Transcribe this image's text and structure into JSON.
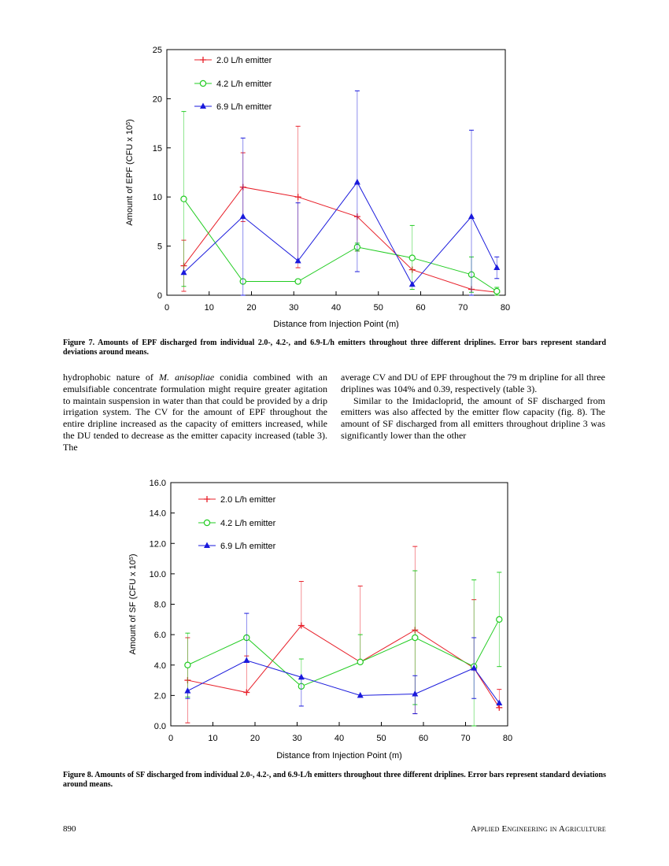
{
  "chart_data": [
    {
      "type": "line",
      "ylabel": "Amount of EPF (CFU x 10^5)",
      "ylabel_main": "Amount of EPF (CFU x 10",
      "ylabel_sup": "5",
      "ylabel_tail": ")",
      "xlabel": "Distance from Injection Point (m)",
      "xlim": [
        0,
        80
      ],
      "ylim": [
        0,
        25
      ],
      "xticks": [
        "0",
        "10",
        "20",
        "30",
        "40",
        "50",
        "60",
        "70",
        "80"
      ],
      "yticks": [
        "0",
        "5",
        "10",
        "15",
        "20",
        "25"
      ],
      "grid": false,
      "legend_position": "top-left",
      "series": [
        {
          "name": "2.0 L/h emitter",
          "color": "#e8202a",
          "marker": "plus",
          "x": [
            4,
            18,
            31,
            45,
            58,
            72,
            78
          ],
          "y": [
            3.0,
            11.0,
            10.0,
            8.0,
            2.6,
            0.6,
            0.3
          ],
          "err_hi": [
            5.6,
            14.5,
            17.2,
            8.0,
            2.6,
            0.6,
            0.3
          ],
          "err_lo": [
            0.4,
            7.5,
            2.8,
            4.5,
            2.6,
            0.6,
            0.3
          ]
        },
        {
          "name": "4.2 L/h emitter",
          "color": "#22cc22",
          "marker": "circle",
          "x": [
            4,
            18,
            31,
            45,
            58,
            72,
            78
          ],
          "y": [
            9.8,
            1.4,
            1.4,
            4.9,
            3.8,
            2.1,
            0.4
          ],
          "err_hi": [
            18.7,
            1.4,
            1.4,
            5.3,
            7.1,
            3.9,
            0.8
          ],
          "err_lo": [
            0.9,
            1.4,
            1.4,
            4.5,
            0.6,
            0.3,
            0.0
          ]
        },
        {
          "name": "6.9 L/h emitter",
          "color": "#1a1adc",
          "marker": "triangle",
          "x": [
            4,
            18,
            31,
            45,
            58,
            72,
            78
          ],
          "y": [
            2.3,
            8.0,
            3.5,
            11.5,
            1.1,
            8.0,
            2.8
          ],
          "err_hi": [
            2.3,
            16.0,
            9.4,
            20.8,
            1.1,
            16.8,
            3.9
          ],
          "err_lo": [
            2.3,
            0.0,
            3.5,
            2.4,
            1.1,
            0.0,
            1.7
          ]
        }
      ]
    },
    {
      "type": "line",
      "ylabel": "Amount of SF (CFU x 10^5)",
      "ylabel_main": "Amount of SF (CFU x 10",
      "ylabel_sup": "5",
      "ylabel_tail": ")",
      "xlabel": "Distance from Injection Point (m)",
      "xlim": [
        0,
        80
      ],
      "ylim": [
        0,
        16
      ],
      "xticks": [
        "0",
        "10",
        "20",
        "30",
        "40",
        "50",
        "60",
        "70",
        "80"
      ],
      "yticks": [
        "0.0",
        "2.0",
        "4.0",
        "6.0",
        "8.0",
        "10.0",
        "12.0",
        "14.0",
        "16.0"
      ],
      "grid": false,
      "legend_position": "top-left",
      "series": [
        {
          "name": "2.0 L/h emitter",
          "color": "#e8202a",
          "marker": "plus",
          "x": [
            4,
            18,
            31,
            45,
            58,
            72,
            78
          ],
          "y": [
            3.0,
            2.2,
            6.6,
            4.2,
            6.3,
            3.8,
            1.2
          ],
          "err_hi": [
            5.8,
            4.6,
            9.5,
            9.2,
            11.8,
            8.3,
            2.4
          ],
          "err_lo": [
            0.2,
            2.2,
            6.6,
            4.2,
            0.8,
            3.8,
            1.2
          ]
        },
        {
          "name": "4.2 L/h emitter",
          "color": "#22cc22",
          "marker": "circle",
          "x": [
            4,
            18,
            31,
            45,
            58,
            72,
            78
          ],
          "y": [
            4.0,
            5.8,
            2.6,
            4.2,
            5.8,
            3.9,
            7.0
          ],
          "err_hi": [
            6.1,
            5.8,
            4.4,
            6.0,
            10.2,
            9.6,
            10.1
          ],
          "err_lo": [
            1.9,
            5.8,
            2.6,
            4.2,
            1.4,
            0.0,
            3.9
          ]
        },
        {
          "name": "6.9 L/h emitter",
          "color": "#1a1adc",
          "marker": "triangle",
          "x": [
            4,
            18,
            31,
            45,
            58,
            72,
            78
          ],
          "y": [
            2.3,
            4.3,
            3.2,
            2.0,
            2.1,
            3.8,
            1.5
          ],
          "err_hi": [
            2.3,
            7.4,
            3.2,
            2.0,
            3.3,
            5.8,
            1.5
          ],
          "err_lo": [
            1.8,
            4.3,
            1.3,
            2.0,
            0.8,
            1.8,
            1.5
          ]
        }
      ]
    }
  ],
  "figure7": {
    "caption": "Figure 7. Amounts of EPF discharged from individual 2.0-, 4.2-, and 6.9-L/h emitters throughout three different driplines. Error bars represent standard deviations around means."
  },
  "body_text": {
    "left_pre": "hydrophobic nature of ",
    "left_italic": "M. anisopliae",
    "left_post": " conidia combined with an emulsifiable concentrate formulation might require greater agitation to maintain suspension in water than that could be provided by a drip irrigation system. The CV for the amount of EPF throughout the entire dripline increased as the capacity of emitters increased, while the DU tended to decrease as the emitter capacity increased (table 3). The",
    "right_p1": "average CV and DU of EPF throughout the 79 m dripline for all three driplines was 104% and 0.39, respectively (table 3).",
    "right_p2": "Similar to the Imidacloprid, the amount of SF discharged from emitters was also affected by the emitter flow capacity (fig. 8). The amount of SF discharged from all emitters throughout dripline 3 was significantly lower than the other"
  },
  "figure8": {
    "caption": "Figure 8. Amounts of SF discharged from individual 2.0-, 4.2-, and 6.9-L/h emitters throughout three different driplines. Error bars represent standard deviations around means."
  },
  "footer": {
    "page_number": "890",
    "journal": "Applied Engineering in Agriculture"
  }
}
